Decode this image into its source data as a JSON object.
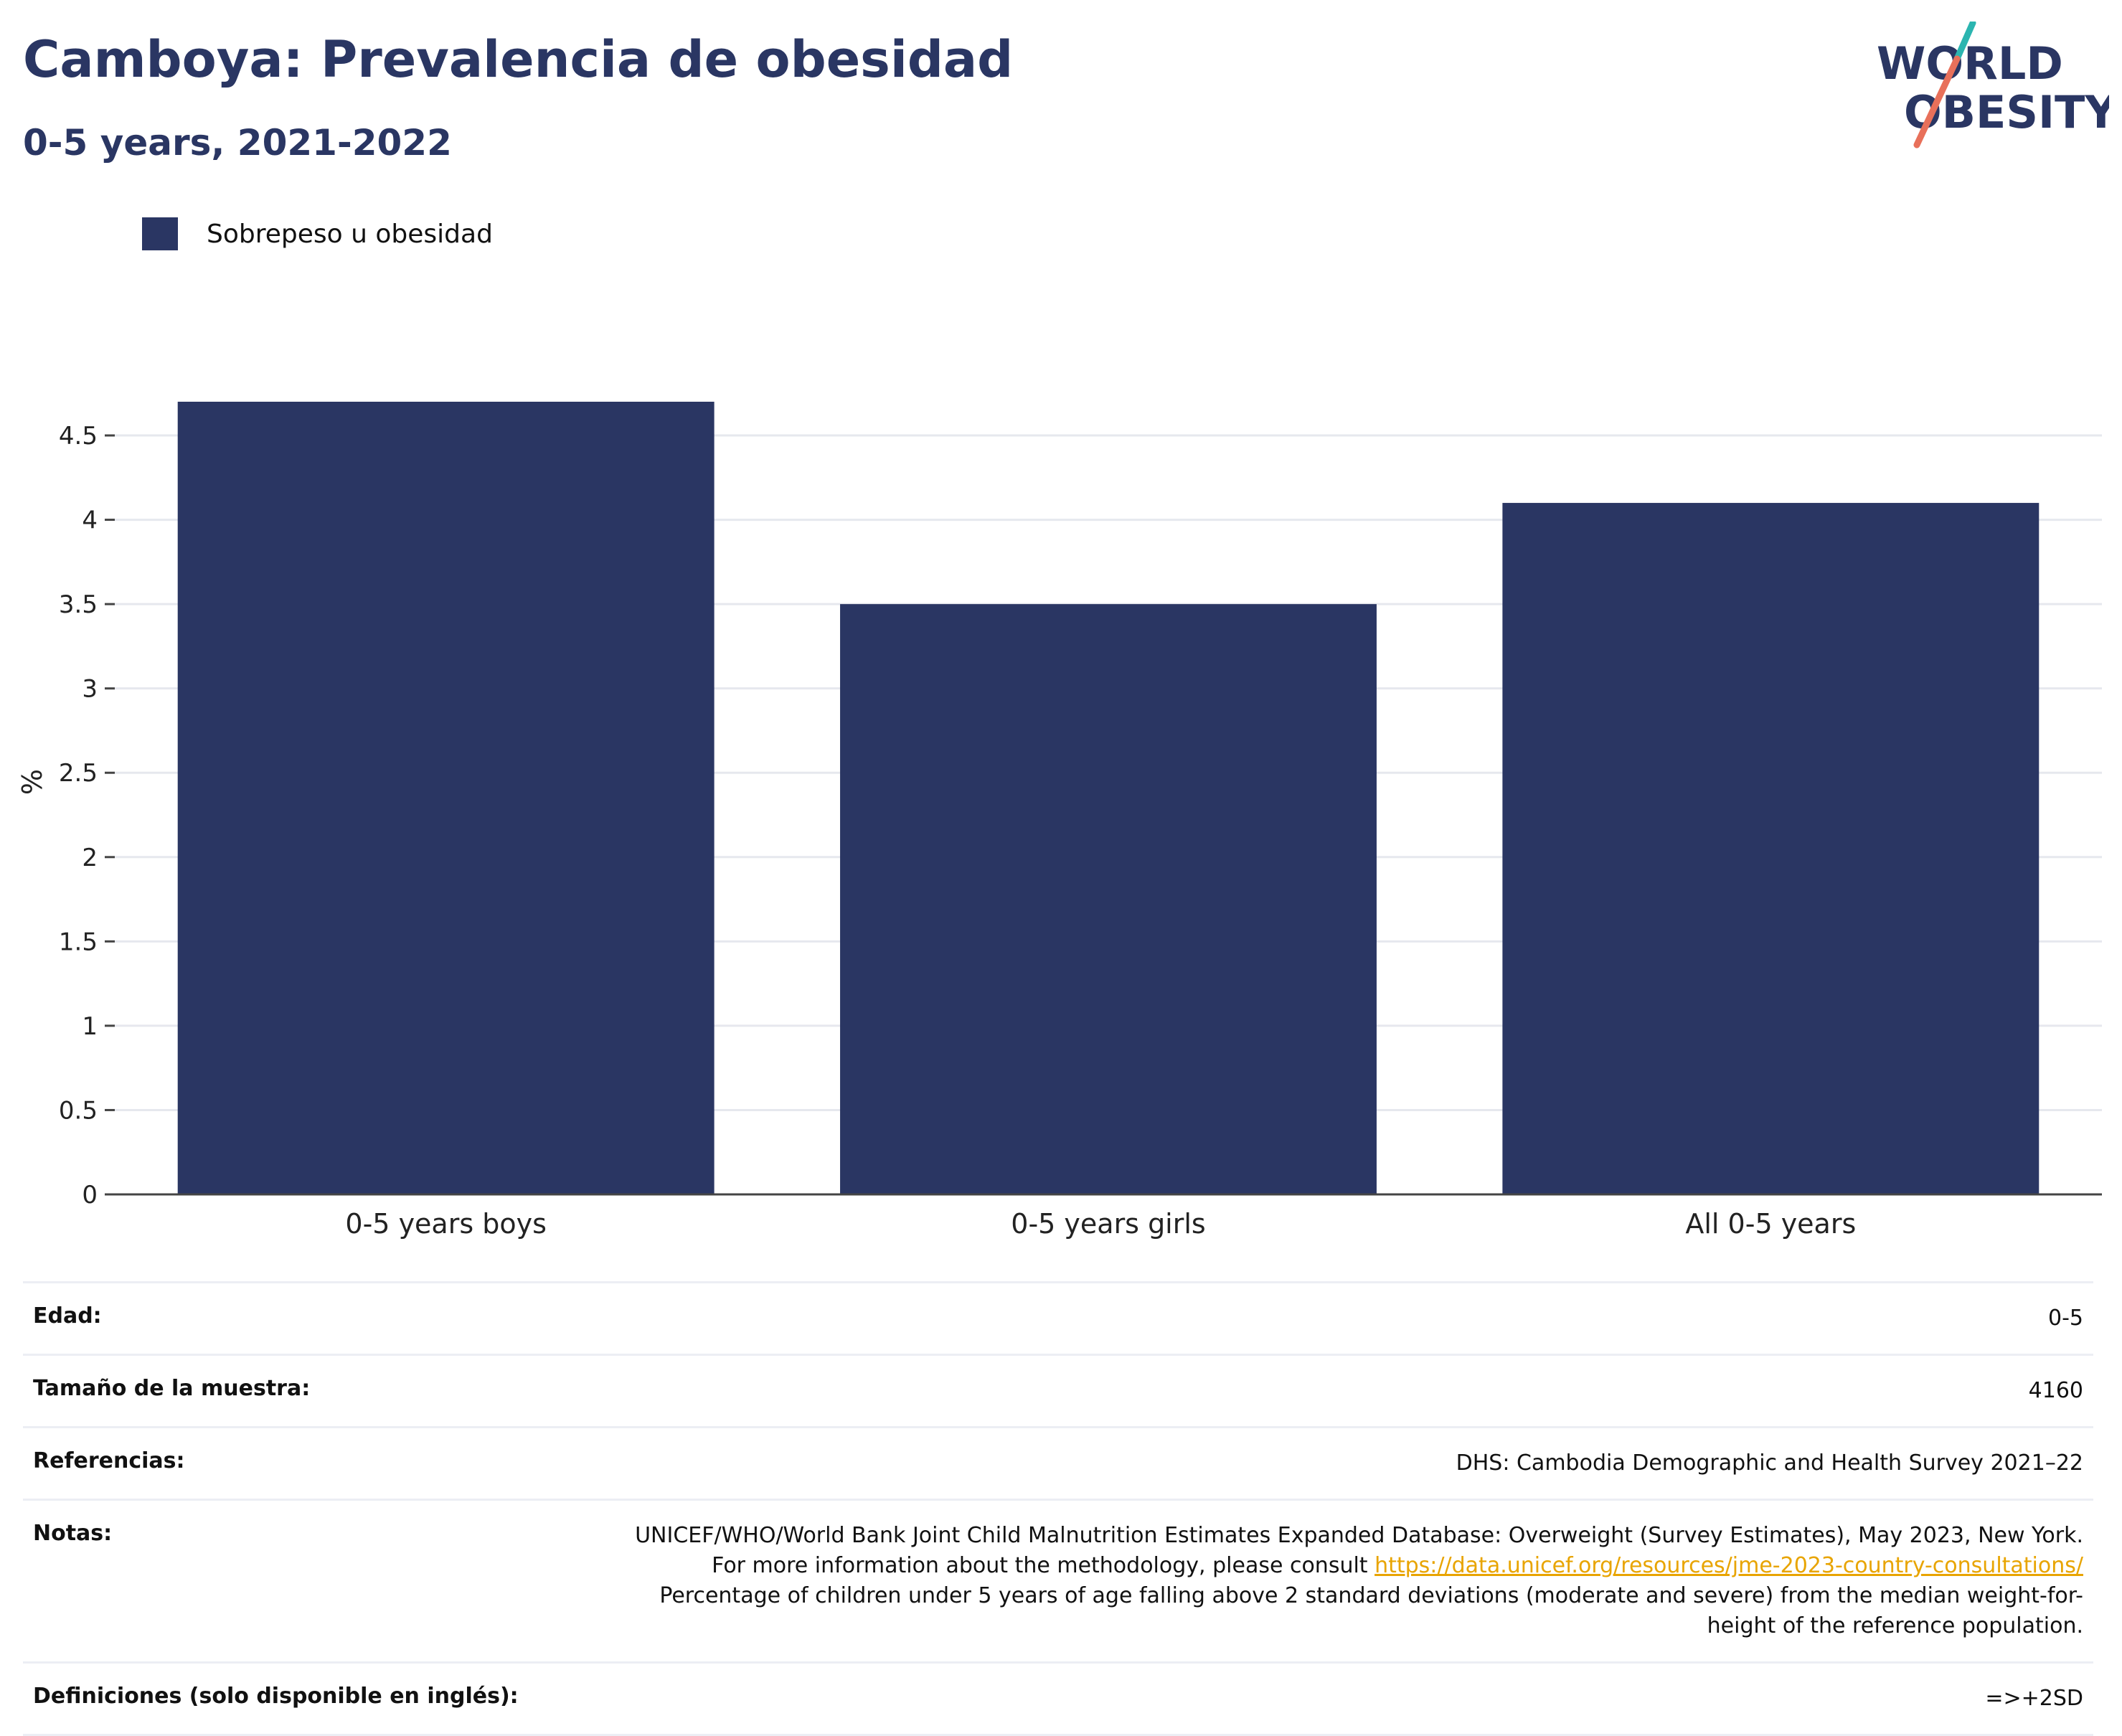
{
  "header": {
    "title": "Camboya: Prevalencia de obesidad",
    "subtitle": "0-5 years, 2021-2022",
    "logo_line1": "WORLD",
    "logo_line2": "OBESITY"
  },
  "legend": {
    "label": "Sobrepeso u obesidad",
    "color": "#2a3663"
  },
  "chart_data": {
    "type": "bar",
    "title": "Camboya: Prevalencia de obesidad",
    "subtitle": "0-5 years, 2021-2022",
    "categories": [
      "0-5 years boys",
      "0-5 years girls",
      "All 0-5 years"
    ],
    "series": [
      {
        "name": "Sobrepeso u obesidad",
        "values": [
          4.7,
          3.5,
          4.1
        ],
        "color": "#2a3663"
      }
    ],
    "xlabel": "",
    "ylabel": "%",
    "ylim": [
      0,
      4.7
    ],
    "yticks": [
      0,
      0.5,
      1,
      1.5,
      2,
      2.5,
      3,
      3.5,
      4,
      4.5
    ],
    "ytick_labels": [
      "0",
      "0.5",
      "1",
      "1.5",
      "2",
      "2.5",
      "3",
      "3.5",
      "4",
      "4.5"
    ],
    "grid": true,
    "legend_position": "top-left"
  },
  "info": {
    "age_label": "Edad:",
    "age_value": "0-5",
    "sample_label": "Tamaño de la muestra:",
    "sample_value": "4160",
    "refs_label": "Referencias:",
    "refs_value": "DHS: Cambodia Demographic and Health Survey 2021–22",
    "notes_label": "Notas:",
    "notes_text_1": "UNICEF/WHO/World Bank Joint Child Malnutrition Estimates Expanded Database: Overweight (Survey Estimates), May 2023, New York. For more information about the methodology, please consult ",
    "notes_link": "https://data.unicef.org/resources/jme-2023-country-consultations/",
    "notes_text_2": "Percentage of children under 5 years of age falling above 2 standard deviations (moderate and severe) from the median weight-for-height of the reference population.",
    "defs_label": "Definiciones (solo disponible en inglés):",
    "defs_value": "=>+2SD"
  }
}
